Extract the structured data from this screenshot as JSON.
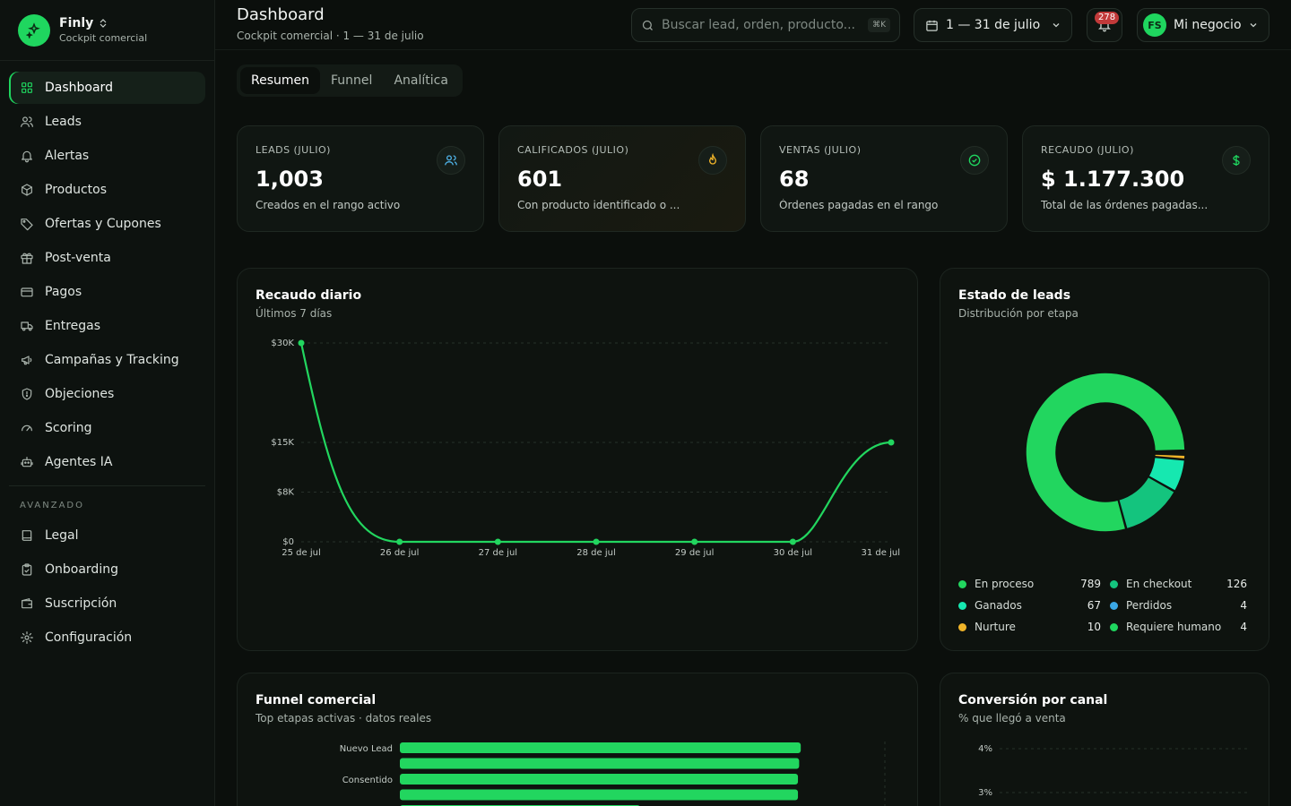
{
  "brand": {
    "name": "Finly",
    "subtitle": "Cockpit comercial"
  },
  "sidebar": {
    "items": [
      {
        "label": "Dashboard",
        "icon": "grid-icon",
        "active": true
      },
      {
        "label": "Leads",
        "icon": "users-icon"
      },
      {
        "label": "Alertas",
        "icon": "bell-icon"
      },
      {
        "label": "Productos",
        "icon": "box-icon"
      },
      {
        "label": "Ofertas y Cupones",
        "icon": "tag-icon"
      },
      {
        "label": "Post-venta",
        "icon": "gift-icon"
      },
      {
        "label": "Pagos",
        "icon": "credit-card-icon"
      },
      {
        "label": "Entregas",
        "icon": "truck-icon"
      },
      {
        "label": "Campañas y Tracking",
        "icon": "megaphone-icon"
      },
      {
        "label": "Objeciones",
        "icon": "shield-icon"
      },
      {
        "label": "Scoring",
        "icon": "gauge-icon"
      },
      {
        "label": "Agentes IA",
        "icon": "bot-icon"
      }
    ],
    "section_label": "AVANZADO",
    "advanced_items": [
      {
        "label": "Legal",
        "icon": "book-icon"
      },
      {
        "label": "Onboarding",
        "icon": "clipboard-check-icon"
      },
      {
        "label": "Suscripción",
        "icon": "wallet-icon"
      },
      {
        "label": "Configuración",
        "icon": "gear-icon"
      }
    ]
  },
  "header": {
    "title": "Dashboard",
    "subtitle": "Cockpit comercial · 1 — 31 de julio",
    "search_placeholder": "Buscar lead, orden, producto...",
    "search_shortcut": "⌘K",
    "date_range": "1 — 31 de julio",
    "notifications_count": "278",
    "business_initials": "FS",
    "business_name": "Mi negocio"
  },
  "tabs": [
    {
      "label": "Resumen",
      "active": true
    },
    {
      "label": "Funnel"
    },
    {
      "label": "Analítica"
    }
  ],
  "kpis": [
    {
      "label": "LEADS (JULIO)",
      "value": "1,003",
      "note": "Creados en el rango activo",
      "icon": "users-icon",
      "icon_color": "#4fb3e8"
    },
    {
      "label": "CALIFICADOS (JULIO)",
      "value": "601",
      "note": "Con producto identificado o ...",
      "icon": "flame-icon",
      "icon_color": "#f0b429"
    },
    {
      "label": "VENTAS (JULIO)",
      "value": "68",
      "note": "Órdenes pagadas en el rango",
      "icon": "check-circle-icon",
      "icon_color": "#1fd65f"
    },
    {
      "label": "RECAUDO (JULIO)",
      "value": "$ 1.177.300",
      "note": "Total de las órdenes pagadas...",
      "icon": "dollar-icon",
      "icon_color": "#1fd65f"
    }
  ],
  "revenue_panel": {
    "title": "Recaudo diario",
    "subtitle": "Últimos 7 días"
  },
  "leads_panel": {
    "title": "Estado de leads",
    "subtitle": "Distribución por etapa"
  },
  "funnel_panel": {
    "title": "Funnel comercial",
    "subtitle": "Top etapas activas · datos reales"
  },
  "conversion_panel": {
    "title": "Conversión por canal",
    "subtitle": "% que llegó a venta"
  },
  "chart_data": [
    {
      "type": "line",
      "title": "Recaudo diario",
      "subtitle": "Últimos 7 días",
      "x": [
        "25 de jul",
        "26 de jul",
        "27 de jul",
        "28 de jul",
        "29 de jul",
        "30 de jul",
        "31 de jul"
      ],
      "series": [
        {
          "values": [
            30000,
            0,
            0,
            0,
            0,
            0,
            15000
          ]
        }
      ],
      "y_ticks": [
        "$0",
        "$8K",
        "$15K",
        "$30K"
      ],
      "y_tick_values": [
        0,
        7500,
        15000,
        30000
      ],
      "ylim": [
        0,
        30000
      ],
      "color": "#22d65f"
    },
    {
      "type": "pie",
      "title": "Estado de leads",
      "subtitle": "Distribución por etapa",
      "slices": [
        {
          "label": "En proceso",
          "value": 789,
          "color": "#22d65f"
        },
        {
          "label": "En checkout",
          "value": 126,
          "color": "#14c47e"
        },
        {
          "label": "Ganados",
          "value": 67,
          "color": "#16e8b0"
        },
        {
          "label": "Perdidos",
          "value": 4,
          "color": "#3aa7e6"
        },
        {
          "label": "Nurture",
          "value": 10,
          "color": "#f0b429"
        },
        {
          "label": "Requiere humano",
          "value": 4,
          "color": "#1fd65f"
        }
      ]
    },
    {
      "type": "bar",
      "title": "Funnel comercial",
      "subtitle": "Top etapas activas · datos reales",
      "categories": [
        "Nuevo Lead",
        "",
        "Consentido",
        ""
      ],
      "values": [
        1003,
        999,
        996,
        996
      ],
      "xlim": [
        0,
        1200
      ],
      "color": "#22d65f"
    },
    {
      "type": "bar",
      "title": "Conversión por canal",
      "subtitle": "% que llegó a venta",
      "y_ticks": [
        "3%",
        "4%"
      ],
      "y_tick_values": [
        3,
        4
      ]
    }
  ]
}
